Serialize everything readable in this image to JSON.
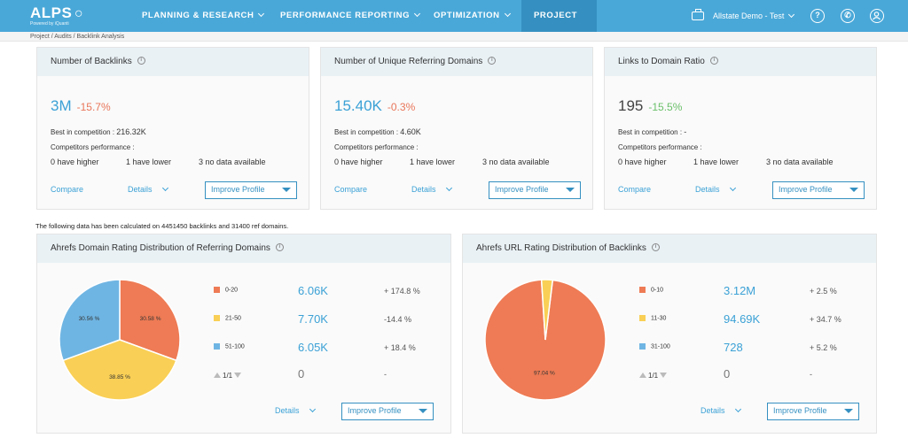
{
  "app": {
    "brand": "ALPS",
    "tagline": "Powered by iQuanti"
  },
  "nav": {
    "items": [
      {
        "label": "PLANNING & RESEARCH"
      },
      {
        "label": "PERFORMANCE REPORTING"
      },
      {
        "label": "OPTIMIZATION"
      },
      {
        "label": "PROJECT"
      }
    ],
    "account": "Allstate Demo - Test"
  },
  "breadcrumb": "Project / Audits / Backlink Analysis",
  "summary_cards": [
    {
      "title": "Number of Backlinks",
      "value": "3M",
      "change": "-15.7%",
      "best": "Best in competition :",
      "best_value": "216.32K",
      "competitors": "Competitors performance :",
      "higher": "0 have higher",
      "lower": "1 have lower",
      "nodata": "3 no data available",
      "compare": "Compare",
      "details": "Details",
      "improve": "Improve Profile"
    },
    {
      "title": "Number of Unique Referring Domains",
      "value": "15.40K",
      "change": "-0.3%",
      "best": "Best in competition :",
      "best_value": "4.60K",
      "competitors": "Competitors performance :",
      "higher": "0 have higher",
      "lower": "1 have lower",
      "nodata": "3 no data available",
      "compare": "Compare",
      "details": "Details",
      "improve": "Improve Profile"
    },
    {
      "title": "Links to Domain Ratio",
      "value": "195",
      "change": "-15.5%",
      "best": "Best in competition :",
      "best_value": "-",
      "competitors": "Competitors performance :",
      "higher": "0 have higher",
      "lower": "1 have lower",
      "nodata": "3 no data available",
      "compare": "Compare",
      "details": "Details",
      "improve": "Improve Profile"
    }
  ],
  "note": "The following data has been calculated on 4451450 backlinks and 31400 ref domains.",
  "distributions": [
    {
      "title": "Ahrefs Domain Rating Distribution of Referring Domains",
      "rows": [
        {
          "range": "0-20",
          "value": "6.06K",
          "change": "+ 174.8 %"
        },
        {
          "range": "21-50",
          "value": "7.70K",
          "change": "-14.4 %"
        },
        {
          "range": "51-100",
          "value": "6.05K",
          "change": "+ 18.4 %"
        }
      ],
      "pager": "1/1",
      "footer_value": "0",
      "footer_change": "-",
      "details": "Details",
      "improve": "Improve Profile"
    },
    {
      "title": "Ahrefs URL Rating Distribution of Backlinks",
      "rows": [
        {
          "range": "0-10",
          "value": "3.12M",
          "change": "+ 2.5 %"
        },
        {
          "range": "11-30",
          "value": "94.69K",
          "change": "+ 34.7 %"
        },
        {
          "range": "31-100",
          "value": "728",
          "change": "+ 5.2 %"
        }
      ],
      "pager": "1/1",
      "footer_value": "0",
      "footer_change": "-",
      "details": "Details",
      "improve": "Improve Profile"
    }
  ],
  "chart_data": [
    {
      "type": "pie",
      "categories": [
        "0-20",
        "21-50",
        "51-100"
      ],
      "values": [
        30.58,
        38.85,
        30.56
      ],
      "labels": [
        "30.58 %",
        "38.85 %",
        "30.56 %"
      ],
      "colors": [
        "#ee7b55",
        "#f9cf55",
        "#6fb5e3"
      ]
    },
    {
      "type": "pie",
      "categories": [
        "0-10",
        "11-30",
        "31-100"
      ],
      "values": [
        97.04,
        2.94,
        0.02
      ],
      "labels": [
        "97.04 %"
      ],
      "colors": [
        "#ee7b55",
        "#f9cf55",
        "#6fb5e3"
      ]
    }
  ]
}
